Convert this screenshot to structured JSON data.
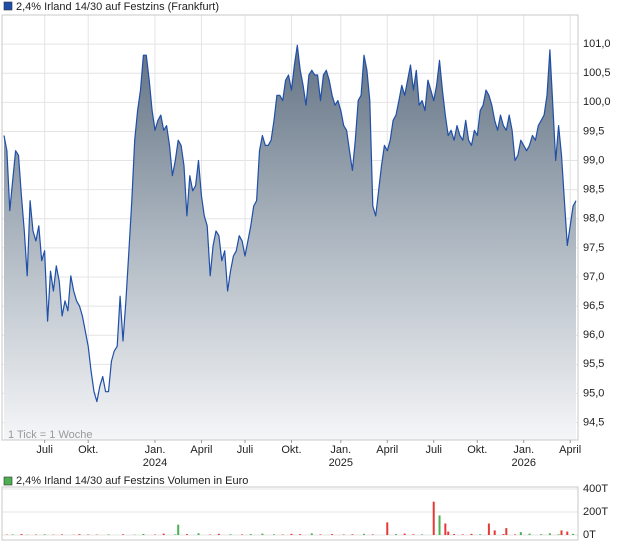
{
  "chart_data": {
    "type": "line",
    "title": "2,4% Irland 14/30 auf Festzins (Frankfurt)",
    "annotation": "1 Tick = 1 Woche",
    "color": "#1f4fa8",
    "grid": true,
    "values": [
      99.43,
      99.17,
      98.14,
      98.66,
      99.17,
      99.09,
      98.4,
      97.79,
      97.02,
      98.31,
      97.79,
      97.62,
      97.88,
      97.28,
      97.45,
      96.24,
      97.1,
      96.76,
      97.19,
      96.93,
      96.33,
      96.59,
      96.42,
      97.02,
      96.76,
      96.59,
      96.5,
      96.33,
      96.07,
      95.81,
      95.38,
      95.03,
      94.86,
      95.12,
      95.29,
      95.03,
      95.03,
      95.55,
      95.73,
      95.81,
      96.67,
      95.9,
      96.59,
      97.45,
      98.31,
      99.35,
      99.86,
      100.21,
      100.81,
      100.81,
      100.38,
      99.86,
      99.52,
      99.69,
      99.78,
      99.52,
      99.6,
      99.26,
      98.74,
      99.0,
      99.35,
      99.26,
      98.91,
      98.05,
      98.74,
      98.48,
      98.57,
      99.0,
      98.4,
      98.05,
      97.88,
      97.02,
      97.54,
      97.79,
      97.71,
      97.28,
      97.45,
      96.76,
      97.1,
      97.36,
      97.45,
      97.71,
      97.62,
      97.36,
      97.62,
      97.88,
      98.22,
      98.31,
      99.17,
      99.43,
      99.26,
      99.26,
      99.35,
      99.69,
      100.12,
      100.12,
      100.03,
      100.38,
      100.47,
      100.21,
      100.64,
      100.98,
      100.55,
      100.29,
      99.95,
      100.47,
      100.55,
      100.47,
      100.47,
      100.03,
      100.47,
      100.55,
      100.38,
      100.12,
      99.95,
      100.03,
      99.86,
      99.6,
      99.52,
      99.17,
      98.83,
      99.35,
      100.03,
      100.12,
      100.81,
      100.55,
      100.03,
      98.22,
      98.05,
      98.48,
      98.91,
      99.26,
      99.17,
      99.35,
      99.69,
      99.78,
      100.03,
      100.29,
      100.12,
      100.38,
      100.64,
      100.21,
      100.55,
      99.95,
      100.03,
      99.86,
      100.38,
      100.21,
      100.03,
      100.29,
      100.72,
      100.21,
      99.78,
      99.43,
      99.52,
      99.35,
      99.6,
      99.43,
      99.35,
      99.69,
      99.35,
      99.26,
      99.52,
      99.43,
      99.86,
      99.95,
      100.21,
      100.12,
      99.95,
      99.69,
      99.52,
      99.78,
      99.6,
      99.52,
      99.78,
      99.52,
      99.0,
      99.09,
      99.35,
      99.26,
      99.17,
      99.26,
      99.43,
      99.35,
      99.6,
      99.69,
      99.78,
      100.12,
      100.9,
      99.95,
      99.0,
      99.6,
      99.09,
      98.31,
      97.54,
      97.88,
      98.22,
      98.31
    ],
    "xlim": [
      0,
      197
    ],
    "xticks": [
      {
        "value": 14,
        "label": "Juli"
      },
      {
        "value": 29,
        "label": "Okt."
      },
      {
        "value": 52,
        "label": "Jan."
      },
      {
        "value": 68,
        "label": "April"
      },
      {
        "value": 83,
        "label": "Juli"
      },
      {
        "value": 99,
        "label": "Okt."
      },
      {
        "value": 116,
        "label": "Jan."
      },
      {
        "value": 132,
        "label": "April"
      },
      {
        "value": 148,
        "label": "Juli"
      },
      {
        "value": 163,
        "label": "Okt."
      },
      {
        "value": 179,
        "label": "Jan."
      },
      {
        "value": 195,
        "label": "April"
      }
    ],
    "year_labels": [
      {
        "value": 52,
        "label": "2024"
      },
      {
        "value": 116,
        "label": "2025"
      },
      {
        "value": 179,
        "label": "2026"
      }
    ],
    "ylim": [
      94.2,
      101.5
    ],
    "yticks": [
      {
        "value": 94.5,
        "label": "94,5"
      },
      {
        "value": 95,
        "label": "95,0"
      },
      {
        "value": 95.5,
        "label": "95,5"
      },
      {
        "value": 96,
        "label": "96,0"
      },
      {
        "value": 96.5,
        "label": "96,5"
      },
      {
        "value": 97,
        "label": "97,0"
      },
      {
        "value": 97.5,
        "label": "97,5"
      },
      {
        "value": 98,
        "label": "98,0"
      },
      {
        "value": 98.5,
        "label": "98,5"
      },
      {
        "value": 99,
        "label": "99,0"
      },
      {
        "value": 99.5,
        "label": "99,5"
      },
      {
        "value": 100,
        "label": "100,0"
      },
      {
        "value": 100.5,
        "label": "100,5"
      },
      {
        "value": 101,
        "label": "101,0"
      }
    ],
    "volume": {
      "type": "bar",
      "title": "2,4% Irland 14/30 auf Festzins Volumen in Euro",
      "up_color": "#4caf50",
      "down_color": "#e53935",
      "ylim": [
        0,
        400
      ],
      "yticks": [
        {
          "value": 0,
          "label": "0T"
        },
        {
          "value": 200,
          "label": "200T"
        },
        {
          "value": 400,
          "label": "400T"
        }
      ],
      "values": [
        0,
        3,
        0,
        5,
        0,
        0,
        8,
        0,
        2,
        0,
        0,
        4,
        0,
        0,
        6,
        0,
        0,
        3,
        0,
        0,
        5,
        0,
        0,
        0,
        2,
        0,
        7,
        0,
        0,
        4,
        0,
        0,
        3,
        0,
        0,
        0,
        5,
        0,
        0,
        0,
        0,
        6,
        0,
        0,
        0,
        3,
        0,
        0,
        9,
        0,
        0,
        0,
        4,
        0,
        0,
        12,
        0,
        0,
        0,
        5,
        90,
        0,
        0,
        8,
        0,
        0,
        0,
        15,
        0,
        0,
        0,
        4,
        0,
        0,
        10,
        0,
        0,
        0,
        6,
        0,
        0,
        0,
        5,
        0,
        0,
        8,
        0,
        0,
        0,
        12,
        0,
        0,
        0,
        6,
        0,
        0,
        4,
        0,
        0,
        10,
        0,
        0,
        7,
        0,
        0,
        0,
        14,
        0,
        0,
        5,
        0,
        0,
        0,
        8,
        0,
        0,
        0,
        4,
        0,
        0,
        6,
        0,
        0,
        0,
        10,
        0,
        0,
        5,
        0,
        0,
        0,
        0,
        110,
        0,
        0,
        8,
        0,
        0,
        12,
        0,
        0,
        6,
        0,
        0,
        5,
        0,
        0,
        0,
        290,
        0,
        170,
        0,
        100,
        30,
        0,
        8,
        0,
        0,
        5,
        0,
        0,
        10,
        0,
        0,
        6,
        0,
        0,
        100,
        0,
        40,
        0,
        0,
        8,
        60,
        0,
        0,
        5,
        0,
        25,
        0,
        0,
        12,
        0,
        0,
        0,
        7,
        0,
        0,
        15,
        0,
        0,
        6,
        40,
        0,
        30,
        0,
        10,
        0
      ]
    }
  }
}
